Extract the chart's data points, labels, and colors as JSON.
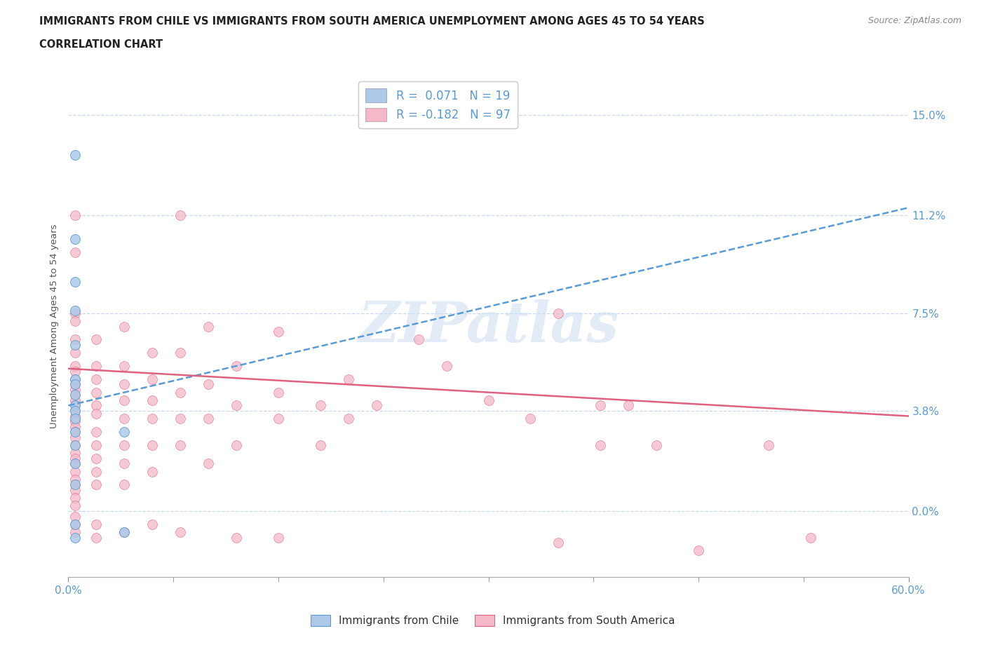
{
  "title_line1": "IMMIGRANTS FROM CHILE VS IMMIGRANTS FROM SOUTH AMERICA UNEMPLOYMENT AMONG AGES 45 TO 54 YEARS",
  "title_line2": "CORRELATION CHART",
  "source": "Source: ZipAtlas.com",
  "ylabel": "Unemployment Among Ages 45 to 54 years",
  "xmin": 0.0,
  "xmax": 0.6,
  "ymin": -0.025,
  "ymax": 0.165,
  "yticks": [
    0.0,
    0.038,
    0.075,
    0.112,
    0.15
  ],
  "ytick_labels": [
    "0.0%",
    "3.8%",
    "7.5%",
    "11.2%",
    "15.0%"
  ],
  "xtick_positions": [
    0.0,
    0.6
  ],
  "xtick_labels": [
    "0.0%",
    "60.0%"
  ],
  "xminor_ticks": [
    0.075,
    0.15,
    0.225,
    0.3,
    0.375,
    0.45,
    0.525
  ],
  "chile_color": "#aec9e8",
  "chile_color_dark": "#5b9bd5",
  "sa_color": "#f4b8c8",
  "sa_color_dark": "#e06080",
  "axis_color": "#5b9bd5",
  "grid_color": "#c8d8ee",
  "title_color": "#222222",
  "watermark": "ZIPatlas",
  "chile_trend": [
    0.0,
    0.04,
    0.6,
    0.115
  ],
  "sa_trend": [
    0.0,
    0.054,
    0.6,
    0.036
  ],
  "chile_scatter": [
    [
      0.005,
      0.135
    ],
    [
      0.005,
      0.103
    ],
    [
      0.005,
      0.087
    ],
    [
      0.005,
      0.076
    ],
    [
      0.005,
      0.063
    ],
    [
      0.005,
      0.05
    ],
    [
      0.005,
      0.048
    ],
    [
      0.005,
      0.044
    ],
    [
      0.005,
      0.04
    ],
    [
      0.005,
      0.038
    ],
    [
      0.005,
      0.035
    ],
    [
      0.005,
      0.03
    ],
    [
      0.005,
      0.025
    ],
    [
      0.005,
      0.018
    ],
    [
      0.005,
      0.01
    ],
    [
      0.005,
      -0.005
    ],
    [
      0.005,
      -0.01
    ],
    [
      0.04,
      -0.008
    ],
    [
      0.04,
      0.03
    ]
  ],
  "sa_scatter": [
    [
      0.005,
      0.112
    ],
    [
      0.005,
      0.098
    ],
    [
      0.005,
      0.075
    ],
    [
      0.005,
      0.072
    ],
    [
      0.005,
      0.065
    ],
    [
      0.005,
      0.06
    ],
    [
      0.005,
      0.055
    ],
    [
      0.005,
      0.053
    ],
    [
      0.005,
      0.05
    ],
    [
      0.005,
      0.048
    ],
    [
      0.005,
      0.046
    ],
    [
      0.005,
      0.044
    ],
    [
      0.005,
      0.042
    ],
    [
      0.005,
      0.04
    ],
    [
      0.005,
      0.038
    ],
    [
      0.005,
      0.036
    ],
    [
      0.005,
      0.034
    ],
    [
      0.005,
      0.032
    ],
    [
      0.005,
      0.03
    ],
    [
      0.005,
      0.028
    ],
    [
      0.005,
      0.025
    ],
    [
      0.005,
      0.022
    ],
    [
      0.005,
      0.02
    ],
    [
      0.005,
      0.018
    ],
    [
      0.005,
      0.015
    ],
    [
      0.005,
      0.012
    ],
    [
      0.005,
      0.01
    ],
    [
      0.005,
      0.008
    ],
    [
      0.005,
      0.005
    ],
    [
      0.005,
      0.002
    ],
    [
      0.005,
      -0.002
    ],
    [
      0.005,
      -0.005
    ],
    [
      0.005,
      -0.008
    ],
    [
      0.02,
      0.065
    ],
    [
      0.02,
      0.055
    ],
    [
      0.02,
      0.05
    ],
    [
      0.02,
      0.045
    ],
    [
      0.02,
      0.04
    ],
    [
      0.02,
      0.037
    ],
    [
      0.02,
      0.03
    ],
    [
      0.02,
      0.025
    ],
    [
      0.02,
      0.02
    ],
    [
      0.02,
      0.015
    ],
    [
      0.02,
      0.01
    ],
    [
      0.02,
      -0.005
    ],
    [
      0.02,
      -0.01
    ],
    [
      0.04,
      0.07
    ],
    [
      0.04,
      0.055
    ],
    [
      0.04,
      0.048
    ],
    [
      0.04,
      0.042
    ],
    [
      0.04,
      0.035
    ],
    [
      0.04,
      0.025
    ],
    [
      0.04,
      0.018
    ],
    [
      0.04,
      0.01
    ],
    [
      0.04,
      -0.008
    ],
    [
      0.06,
      0.06
    ],
    [
      0.06,
      0.05
    ],
    [
      0.06,
      0.042
    ],
    [
      0.06,
      0.035
    ],
    [
      0.06,
      0.025
    ],
    [
      0.06,
      0.015
    ],
    [
      0.06,
      -0.005
    ],
    [
      0.08,
      0.112
    ],
    [
      0.08,
      0.06
    ],
    [
      0.08,
      0.045
    ],
    [
      0.08,
      0.035
    ],
    [
      0.08,
      0.025
    ],
    [
      0.08,
      -0.008
    ],
    [
      0.1,
      0.07
    ],
    [
      0.1,
      0.048
    ],
    [
      0.1,
      0.035
    ],
    [
      0.1,
      0.018
    ],
    [
      0.12,
      0.055
    ],
    [
      0.12,
      0.04
    ],
    [
      0.12,
      0.025
    ],
    [
      0.12,
      -0.01
    ],
    [
      0.15,
      0.068
    ],
    [
      0.15,
      0.045
    ],
    [
      0.15,
      0.035
    ],
    [
      0.15,
      -0.01
    ],
    [
      0.18,
      0.04
    ],
    [
      0.18,
      0.025
    ],
    [
      0.2,
      0.05
    ],
    [
      0.2,
      0.035
    ],
    [
      0.22,
      0.04
    ],
    [
      0.25,
      0.065
    ],
    [
      0.27,
      0.055
    ],
    [
      0.3,
      0.042
    ],
    [
      0.33,
      0.035
    ],
    [
      0.35,
      0.075
    ],
    [
      0.35,
      -0.012
    ],
    [
      0.38,
      0.04
    ],
    [
      0.38,
      0.025
    ],
    [
      0.4,
      0.04
    ],
    [
      0.42,
      0.025
    ],
    [
      0.45,
      -0.015
    ],
    [
      0.5,
      0.025
    ],
    [
      0.53,
      -0.01
    ]
  ]
}
